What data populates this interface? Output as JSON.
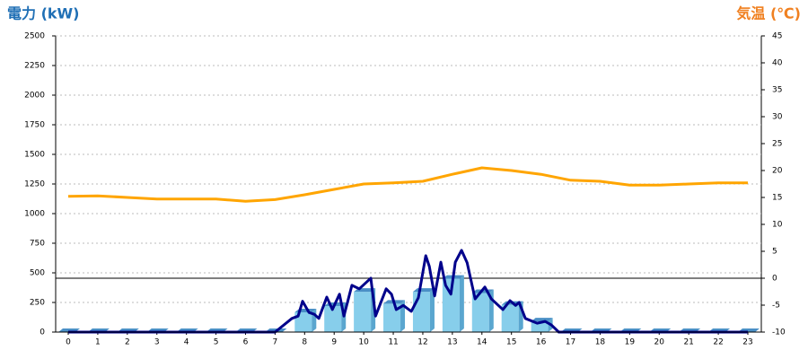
{
  "chart_data": {
    "type": "bar",
    "title": "電力 (kW)",
    "y2_title": "気温 (℃)",
    "categories": [
      "0",
      "1",
      "2",
      "3",
      "4",
      "5",
      "6",
      "7",
      "8",
      "9",
      "10",
      "11",
      "12",
      "13",
      "14",
      "15",
      "16",
      "17",
      "18",
      "19",
      "20",
      "21",
      "22",
      "23"
    ],
    "ylim": [
      0,
      2500
    ],
    "yticks": [
      0,
      250,
      500,
      750,
      1000,
      1250,
      1500,
      1750,
      2000,
      2250,
      2500
    ],
    "y2lim": [
      -10,
      45
    ],
    "y2ticks": [
      -10,
      -5,
      0,
      5,
      10,
      15,
      20,
      25,
      30,
      35,
      40,
      45
    ],
    "grid": true,
    "series": [
      {
        "type": "bar",
        "color": "#87ceeb",
        "values": [
          0,
          0,
          0,
          0,
          0,
          0,
          0,
          0,
          167,
          220,
          340,
          240,
          340,
          450,
          330,
          230,
          90,
          0,
          0,
          0,
          0,
          0,
          0,
          0
        ]
      },
      {
        "type": "line",
        "color": "#00008b",
        "x": [
          0,
          7,
          7.57,
          7.78,
          7.93,
          8.15,
          8.33,
          8.48,
          8.75,
          8.94,
          9.18,
          9.33,
          9.6,
          9.85,
          10.24,
          10.4,
          10.76,
          10.94,
          11.1,
          11.34,
          11.61,
          11.85,
          12.1,
          12.22,
          12.4,
          12.61,
          12.77,
          12.95,
          13.1,
          13.31,
          13.5,
          13.77,
          14.1,
          14.32,
          14.71,
          14.95,
          15.14,
          15.26,
          15.47,
          15.87,
          16.14,
          16.35,
          16.6,
          23
        ],
        "values": [
          0,
          0,
          115,
          135,
          260,
          165,
          150,
          115,
          295,
          190,
          320,
          135,
          395,
          365,
          455,
          135,
          365,
          320,
          190,
          225,
          175,
          290,
          645,
          555,
          305,
          590,
          395,
          320,
          590,
          690,
          585,
          280,
          380,
          280,
          190,
          265,
          225,
          250,
          115,
          75,
          90,
          60,
          0,
          0
        ]
      },
      {
        "type": "line",
        "axis": "y2",
        "color": "#ffa500",
        "values": [
          15.2,
          15.3,
          15,
          14.7,
          14.7,
          14.7,
          14.3,
          14.6,
          15.5,
          16.5,
          17.5,
          17.7,
          18,
          19.3,
          20.5,
          20,
          19.3,
          18.2,
          18,
          17.3,
          17.3,
          17.5,
          17.7,
          17.7
        ]
      }
    ]
  }
}
